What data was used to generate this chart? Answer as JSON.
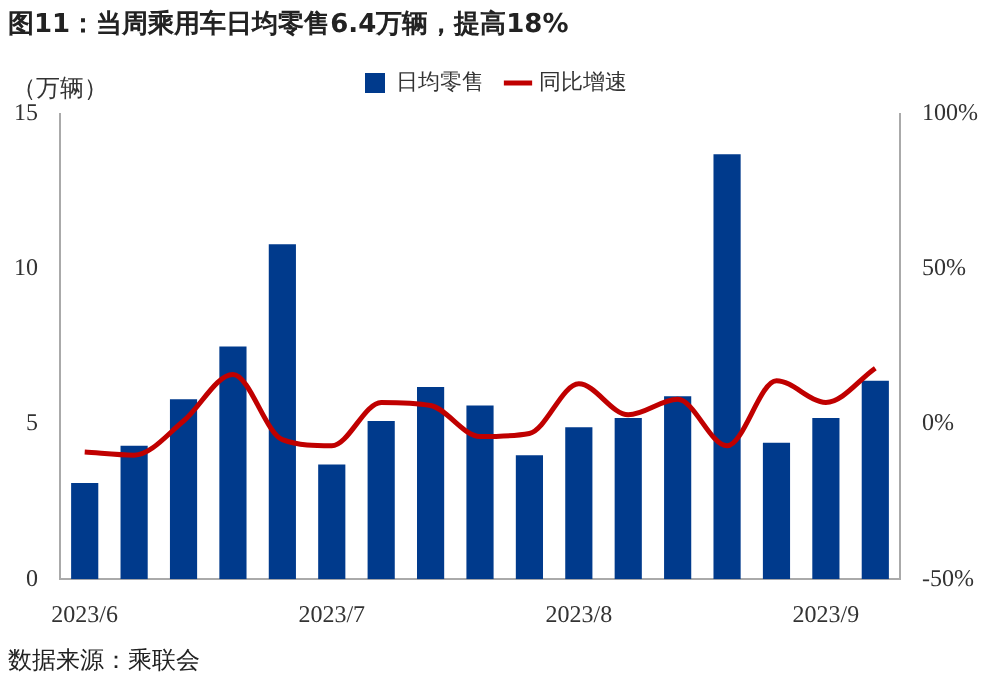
{
  "chart_data": {
    "type": "bar",
    "title": "图11：当周乘用车日均零售6.4万辆，提高18%",
    "ylabel": "（万辆）",
    "annotations": [
      "数据来源：乘联会"
    ],
    "categories": [
      "2023/6",
      null,
      null,
      null,
      null,
      "2023/7",
      null,
      null,
      null,
      null,
      "2023/8",
      null,
      null,
      null,
      null,
      "2023/9",
      null
    ],
    "series": [
      {
        "name": "日均零售",
        "color": "#003a8c",
        "values": [
          3.1,
          4.3,
          5.8,
          7.5,
          10.8,
          3.7,
          5.1,
          6.2,
          5.6,
          4.0,
          4.9,
          5.2,
          5.9,
          13.7,
          4.4,
          5.2,
          6.4
        ]
      },
      {
        "name": "同比增速",
        "type": "line",
        "axis": "y2",
        "color": "#c00000",
        "values": [
          -9,
          -10,
          1,
          16,
          -5,
          -7,
          7,
          6,
          -4,
          -3,
          13,
          3,
          8,
          -7,
          14,
          7,
          18
        ]
      }
    ],
    "ylim": [
      0,
      15
    ],
    "yticks": [
      0,
      5,
      10,
      15
    ],
    "y2lim": [
      -50,
      100
    ],
    "y2ticks": [
      {
        "value": -50,
        "label": "-50%"
      },
      {
        "value": 0,
        "label": "0%"
      },
      {
        "value": 50,
        "label": "50%"
      },
      {
        "value": 100,
        "label": "100%"
      }
    ],
    "grid": false,
    "legend": "top",
    "marker": "none",
    "line_style": "solid"
  }
}
